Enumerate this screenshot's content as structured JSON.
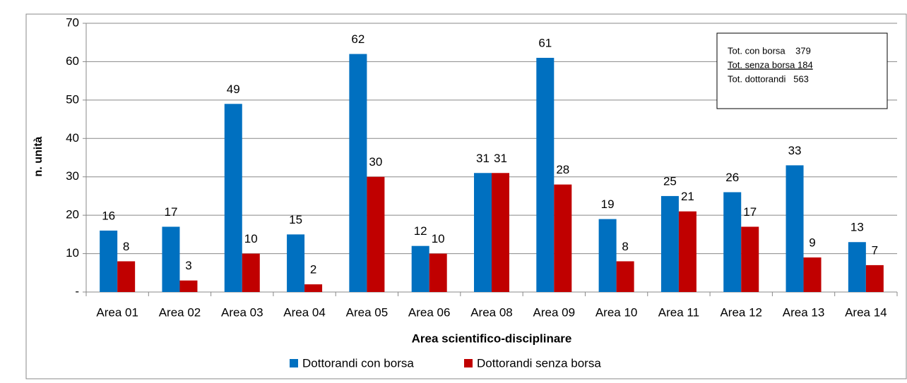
{
  "chart_data": {
    "type": "bar",
    "y_axis_label": "n. unità",
    "x_axis_label": "Area scientifico-disciplinare",
    "categories": [
      "Area 01",
      "Area 02",
      "Area 03",
      "Area 04",
      "Area 05",
      "Area 06",
      "Area 08",
      "Area 09",
      "Area 10",
      "Area 11",
      "Area 12",
      "Area 13",
      "Area 14"
    ],
    "series": [
      {
        "name": "Dottorandi con borsa",
        "color": "#0070c0",
        "values": [
          16,
          17,
          49,
          15,
          62,
          12,
          31,
          61,
          19,
          25,
          26,
          33,
          13
        ]
      },
      {
        "name": "Dottorandi senza borsa",
        "color": "#c00000",
        "values": [
          8,
          3,
          10,
          2,
          30,
          10,
          31,
          28,
          8,
          21,
          17,
          9,
          7
        ]
      }
    ],
    "ylim": [
      0,
      70
    ],
    "yticks": [
      {
        "value": 0,
        "label": "-"
      },
      10,
      20,
      30,
      40,
      50,
      60,
      70
    ],
    "grid": true,
    "legend": "bottom",
    "annotations": [
      "Tot. con borsa    379",
      "Tot. senza borsa 184",
      "Tot. dottorandi   563"
    ]
  }
}
